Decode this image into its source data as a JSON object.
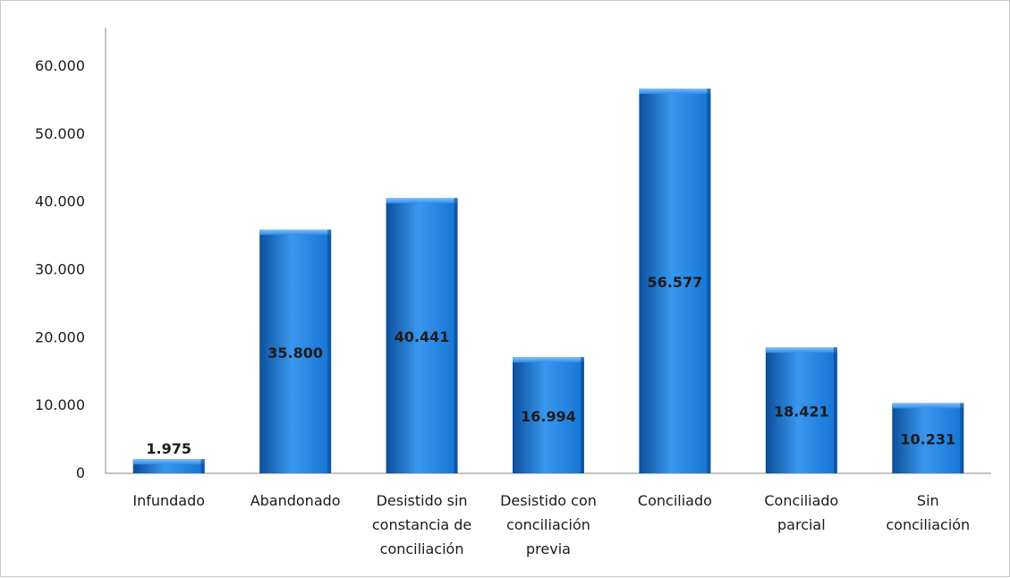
{
  "chart_data": {
    "type": "bar",
    "categories": [
      "Infundado",
      "Abandonado",
      "Desistido sin constancia de conciliación",
      "Desistido con conciliación previa",
      "Conciliado",
      "Conciliado parcial",
      "Sin conciliación"
    ],
    "category_lines": [
      [
        "Infundado"
      ],
      [
        "Abandonado"
      ],
      [
        "Desistido sin",
        "constancia de",
        "conciliación"
      ],
      [
        "Desistido con",
        "conciliación",
        "previa"
      ],
      [
        "Conciliado"
      ],
      [
        "Conciliado",
        "parcial"
      ],
      [
        "Sin",
        "conciliación"
      ]
    ],
    "values": [
      1975,
      35800,
      40441,
      16994,
      56577,
      18421,
      10231
    ],
    "data_labels": [
      "1.975",
      "35.800",
      "40.441",
      "16.994",
      "56.577",
      "18.421",
      "10.231"
    ],
    "yticks": [
      0,
      10000,
      20000,
      30000,
      40000,
      50000,
      60000
    ],
    "ytick_labels": [
      "0",
      "10.000",
      "20.000",
      "30.000",
      "40.000",
      "50.000",
      "60.000"
    ],
    "ylim": [
      0,
      60000
    ],
    "title": "",
    "xlabel": "",
    "ylabel": "",
    "grid": false,
    "bar_color": "#1473d4",
    "bar_color_dark": "#0b4f9c",
    "bar_color_light": "#3a97ee"
  }
}
